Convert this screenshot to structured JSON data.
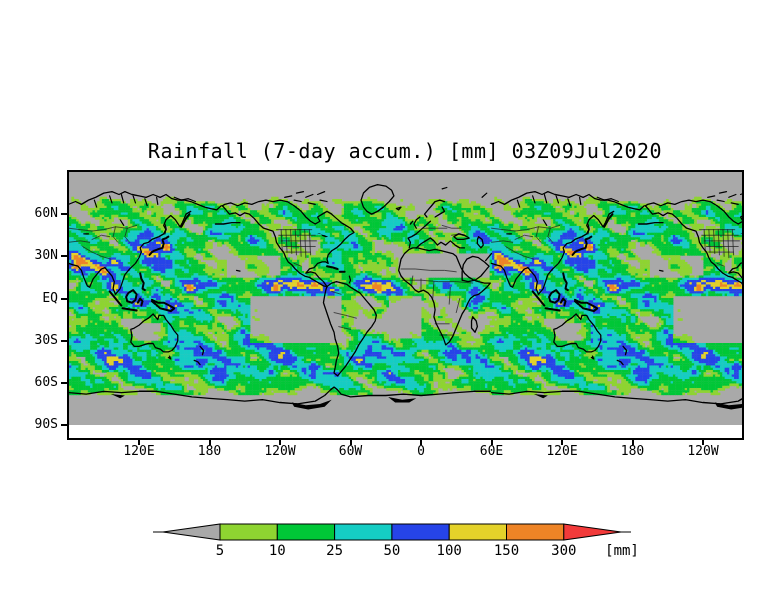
{
  "title": "Rainfall (7-day accum.) [mm] 03Z09Jul2020",
  "axes": {
    "y_tick_labels": [
      "60N",
      "30N",
      "EQ",
      "30S",
      "60S",
      "90S"
    ],
    "x_tick_labels": [
      "120E",
      "180",
      "120W",
      "60W",
      "0",
      "60E",
      "120E",
      "180",
      "120W"
    ]
  },
  "colorbar": {
    "tick_labels": [
      "5",
      "10",
      "25",
      "50",
      "100",
      "150",
      "300"
    ],
    "unit_label": "[mm]",
    "levels_mm": [
      5,
      10,
      25,
      50,
      100,
      150,
      300
    ],
    "colors": {
      "below_min": "#a9a9a9",
      "level_5_10": "#8ed431",
      "level_10_25": "#00c737",
      "level_25_50": "#15cdc4",
      "level_50_100": "#2644e8",
      "level_100_150": "#e4d22a",
      "level_150_300": "#ee8426",
      "above_max": "#f23a3a"
    }
  },
  "map": {
    "background_color": "#a9a9a9",
    "coastline_color": "#000000",
    "border_line_color": "#1a1a1a"
  }
}
